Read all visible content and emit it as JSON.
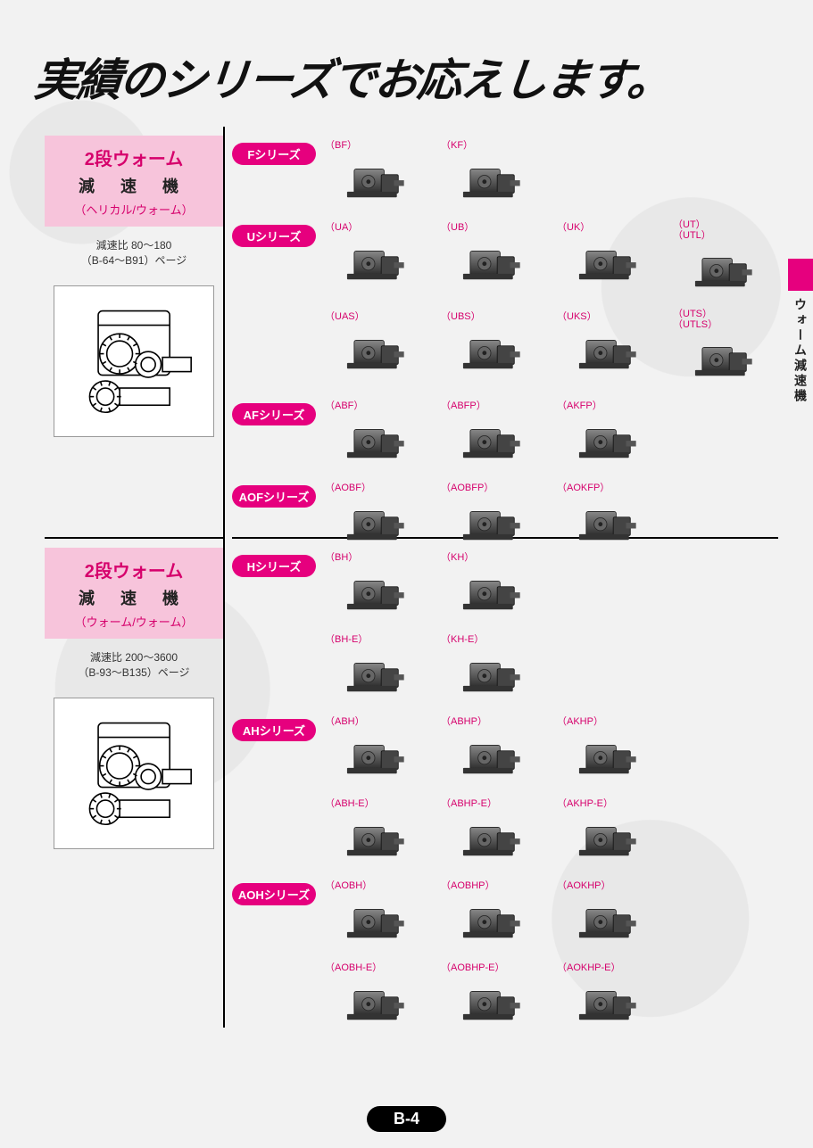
{
  "page_title": "実績のシリーズでお応えします。",
  "side_tab": "ウォーム減速機",
  "page_number": "B-4",
  "colors": {
    "magenta": "#e6007e",
    "pink_bg": "#f7c4db",
    "pink_text": "#d6006c",
    "page_bg": "#f0f0f0"
  },
  "sections": [
    {
      "category": {
        "title": "2段ウォーム",
        "subtitle": "減 速 機",
        "note": "（ヘリカル/ウォーム）",
        "ratio_line1": "減速比 80〜180",
        "ratio_line2": "（B-64〜B91）ページ"
      },
      "rows": [
        {
          "series": "Fシリーズ",
          "items": [
            {
              "label": "（BF）"
            },
            {
              "label": "（KF）"
            }
          ]
        },
        {
          "series": "Uシリーズ",
          "items": [
            {
              "label": "（UA）"
            },
            {
              "label": "（UB）"
            },
            {
              "label": "（UK）"
            },
            {
              "label": "（UT）\n（UTL）"
            }
          ]
        },
        {
          "series": "",
          "items": [
            {
              "label": "（UAS）"
            },
            {
              "label": "（UBS）"
            },
            {
              "label": "（UKS）"
            },
            {
              "label": "（UTS）\n（UTLS）"
            }
          ]
        },
        {
          "series": "AFシリーズ",
          "items": [
            {
              "label": "（ABF）"
            },
            {
              "label": "（ABFP）"
            },
            {
              "label": "（AKFP）"
            }
          ]
        },
        {
          "series": "AOFシリーズ",
          "items": [
            {
              "label": "（AOBF）"
            },
            {
              "label": "（AOBFP）"
            },
            {
              "label": "（AOKFP）"
            }
          ]
        }
      ]
    },
    {
      "category": {
        "title": "2段ウォーム",
        "subtitle": "減 速 機",
        "note": "（ウォーム/ウォーム）",
        "ratio_line1": "減速比 200〜3600",
        "ratio_line2": "（B-93〜B135）ページ"
      },
      "rows": [
        {
          "series": "Hシリーズ",
          "items": [
            {
              "label": "（BH）"
            },
            {
              "label": "（KH）"
            }
          ]
        },
        {
          "series": "",
          "items": [
            {
              "label": "（BH-E）"
            },
            {
              "label": "（KH-E）"
            }
          ]
        },
        {
          "series": "AHシリーズ",
          "items": [
            {
              "label": "（ABH）"
            },
            {
              "label": "（ABHP）"
            },
            {
              "label": "（AKHP）"
            }
          ]
        },
        {
          "series": "",
          "items": [
            {
              "label": "（ABH-E）"
            },
            {
              "label": "（ABHP-E）"
            },
            {
              "label": "（AKHP-E）"
            }
          ]
        },
        {
          "series": "AOHシリーズ",
          "items": [
            {
              "label": "（AOBH）"
            },
            {
              "label": "（AOBHP）"
            },
            {
              "label": "（AOKHP）"
            }
          ]
        },
        {
          "series": "",
          "items": [
            {
              "label": "（AOBH-E）"
            },
            {
              "label": "（AOBHP-E）"
            },
            {
              "label": "（AOKHP-E）"
            }
          ]
        }
      ]
    }
  ]
}
